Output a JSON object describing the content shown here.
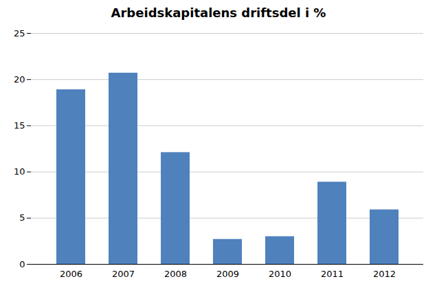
{
  "chart_data": {
    "type": "bar",
    "title": "Arbeidskapitalens driftsdel i %",
    "categories": [
      "2006",
      "2007",
      "2008",
      "2009",
      "2010",
      "2011",
      "2012"
    ],
    "values": [
      18.9,
      20.7,
      12.1,
      2.7,
      3.0,
      8.9,
      5.9
    ],
    "color": "#4f81bd",
    "ylim": [
      0,
      25
    ],
    "yticks": [
      0,
      5,
      10,
      15,
      20,
      25
    ],
    "grid": true
  }
}
